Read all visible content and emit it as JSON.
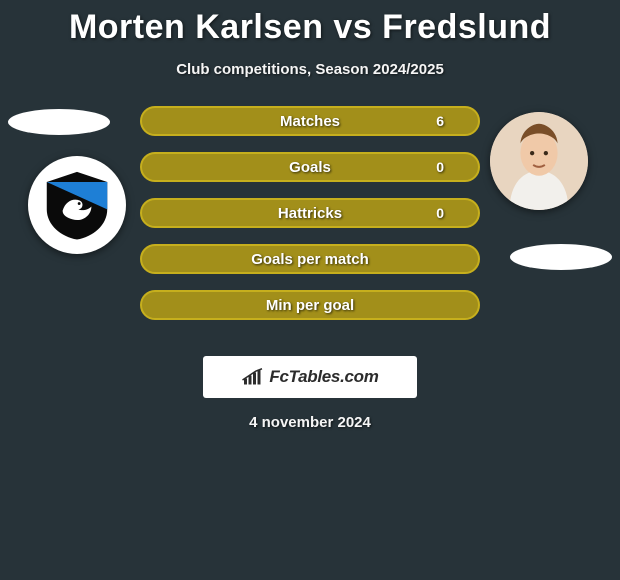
{
  "title": "Morten Karlsen vs Fredslund",
  "subtitle": "Club competitions, Season 2024/2025",
  "date": "4 november 2024",
  "brand": "FcTables.com",
  "background_color": "#273339",
  "bars": [
    {
      "label": "Matches",
      "value": "6",
      "bg": "#a28f1a",
      "border": "#c6af1d"
    },
    {
      "label": "Goals",
      "value": "0",
      "bg": "#a28f1a",
      "border": "#c6af1d"
    },
    {
      "label": "Hattricks",
      "value": "0",
      "bg": "#a28f1a",
      "border": "#c6af1d"
    },
    {
      "label": "Goals per match",
      "value": "",
      "bg": "#a28f1a",
      "border": "#c6af1d"
    },
    {
      "label": "Min per goal",
      "value": "",
      "bg": "#a28f1a",
      "border": "#c6af1d"
    }
  ],
  "player_left": {
    "badge_bg": "#ffffff"
  },
  "player_right": {
    "face_bg": "#e8d5c0"
  }
}
